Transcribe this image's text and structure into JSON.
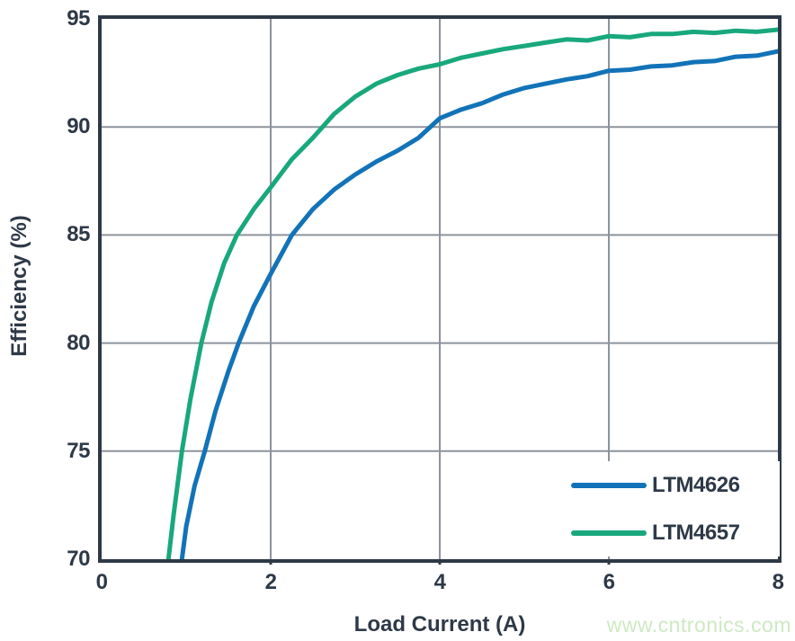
{
  "watermark": "www.cntronics.com",
  "colors": {
    "axis": "#2e3947",
    "grid": "#8d939c",
    "background": "#ffffff",
    "watermark": "#cde9c2"
  },
  "chart_data": {
    "type": "line",
    "title": "",
    "xlabel": "Load Current (A)",
    "ylabel": "Efficiency (%)",
    "xlim": [
      0,
      8
    ],
    "ylim": [
      70,
      95
    ],
    "xticks": [
      0,
      2,
      4,
      6,
      8
    ],
    "yticks": [
      70,
      75,
      80,
      85,
      90,
      95
    ],
    "grid": true,
    "legend_position": "lower right",
    "series": [
      {
        "name": "LTM4626",
        "color": "#1273b8",
        "x": [
          0.95,
          1.0,
          1.1,
          1.22,
          1.35,
          1.5,
          1.62,
          1.8,
          2.0,
          2.25,
          2.5,
          2.75,
          3.0,
          3.25,
          3.5,
          3.75,
          4.0,
          4.25,
          4.5,
          4.75,
          5.0,
          5.25,
          5.5,
          5.75,
          6.0,
          6.25,
          6.5,
          6.75,
          7.0,
          7.25,
          7.5,
          7.75,
          8.0
        ],
        "y": [
          70,
          71.5,
          73.4,
          75,
          76.9,
          78.7,
          80,
          81.7,
          83.2,
          85,
          86.2,
          87.1,
          87.8,
          88.4,
          88.9,
          89.5,
          90.4,
          90.8,
          91.1,
          91.5,
          91.8,
          92.0,
          92.2,
          92.35,
          92.6,
          92.65,
          92.8,
          92.85,
          93.0,
          93.05,
          93.25,
          93.3,
          93.5
        ]
      },
      {
        "name": "LTM4657",
        "color": "#18a87c",
        "x": [
          0.79,
          0.85,
          0.95,
          1.05,
          1.18,
          1.3,
          1.45,
          1.6,
          1.8,
          2.0,
          2.25,
          2.5,
          2.75,
          3.0,
          3.25,
          3.5,
          3.75,
          4.0,
          4.25,
          4.5,
          4.75,
          5.0,
          5.25,
          5.5,
          5.75,
          6.0,
          6.25,
          6.5,
          6.75,
          7.0,
          7.25,
          7.5,
          7.75,
          8.0
        ],
        "y": [
          70,
          72,
          75,
          77.4,
          80,
          81.9,
          83.7,
          85,
          86.2,
          87.2,
          88.5,
          89.5,
          90.6,
          91.4,
          92.0,
          92.4,
          92.7,
          92.9,
          93.2,
          93.4,
          93.6,
          93.75,
          93.9,
          94.05,
          94.0,
          94.2,
          94.15,
          94.3,
          94.3,
          94.4,
          94.35,
          94.45,
          94.4,
          94.5
        ]
      }
    ]
  }
}
